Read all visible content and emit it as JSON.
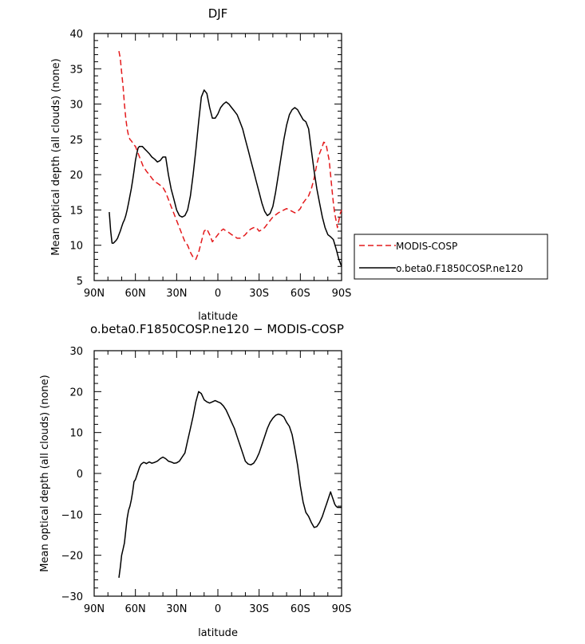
{
  "chart_data": [
    {
      "type": "line",
      "title": "DJF",
      "xlabel": "latitude",
      "ylabel": "Mean optical depth (all clouds) (none)",
      "xlim": [
        90,
        -90
      ],
      "ylim": [
        5,
        40
      ],
      "xticks": [
        90,
        60,
        30,
        0,
        -30,
        -60,
        -90
      ],
      "xtick_labels": [
        "90N",
        "60N",
        "30N",
        "0",
        "30S",
        "60S",
        "90S"
      ],
      "yticks": [
        5,
        10,
        15,
        20,
        25,
        30,
        35,
        40
      ],
      "ytick_labels": [
        "5",
        "10",
        "15",
        "20",
        "25",
        "30",
        "35",
        "40"
      ],
      "grid": false,
      "legend_position": "right",
      "series": [
        {
          "name": "MODIS-COSP",
          "color": "#e41a1c",
          "style": "dashed",
          "x": [
            72,
            71,
            70,
            69,
            68,
            67,
            66,
            65,
            64,
            63,
            62,
            61,
            60,
            59,
            58,
            57,
            56,
            55,
            54,
            53,
            52,
            50,
            48,
            46,
            44,
            42,
            40,
            38,
            36,
            34,
            32,
            30,
            28,
            26,
            24,
            22,
            20,
            18,
            16,
            14,
            12,
            10,
            8,
            6,
            4,
            2,
            0,
            -2,
            -4,
            -6,
            -8,
            -10,
            -12,
            -14,
            -16,
            -18,
            -20,
            -22,
            -24,
            -26,
            -28,
            -30,
            -32,
            -34,
            -36,
            -38,
            -40,
            -42,
            -44,
            -46,
            -48,
            -50,
            -52,
            -54,
            -56,
            -58,
            -60,
            -62,
            -64,
            -66,
            -68,
            -70,
            -72,
            -74,
            -76,
            -77,
            -78,
            -79,
            -80,
            -81,
            -82,
            -83,
            -84,
            -85,
            -86,
            -87,
            -88,
            -89,
            -90
          ],
          "y": [
            37.5,
            36.5,
            34.5,
            32.5,
            30.0,
            28.0,
            26.5,
            25.5,
            25.0,
            24.8,
            24.5,
            24.2,
            24.0,
            23.5,
            23.0,
            22.5,
            22.0,
            21.5,
            21.0,
            20.8,
            20.5,
            20.0,
            19.5,
            19.0,
            18.8,
            18.5,
            18.2,
            17.5,
            16.5,
            15.5,
            14.5,
            13.5,
            12.5,
            11.5,
            10.5,
            10.0,
            9.0,
            8.3,
            8.0,
            9.0,
            10.5,
            12.0,
            12.3,
            11.5,
            10.5,
            11.0,
            11.5,
            12.0,
            12.3,
            12.0,
            11.8,
            11.5,
            11.3,
            11.0,
            11.0,
            11.2,
            11.5,
            12.0,
            12.3,
            12.5,
            12.5,
            12.0,
            12.2,
            12.5,
            13.0,
            13.5,
            14.0,
            14.3,
            14.6,
            14.8,
            15.0,
            15.2,
            15.0,
            14.8,
            14.6,
            14.8,
            15.2,
            16.0,
            16.5,
            17.0,
            18.0,
            19.5,
            21.5,
            23.0,
            24.0,
            24.6,
            24.5,
            24.0,
            23.0,
            22.0,
            20.0,
            18.0,
            16.0,
            14.5,
            13.5,
            12.5,
            13.5,
            14.5,
            15.0
          ]
        },
        {
          "name": "o.beta0.F1850COSP.ne120",
          "color": "#000000",
          "style": "solid",
          "x": [
            79,
            78,
            77,
            76,
            75,
            74,
            73,
            72,
            71,
            70,
            69,
            68,
            67,
            66,
            65,
            64,
            63,
            62,
            61,
            60,
            59,
            58,
            57,
            56,
            55,
            54,
            53,
            52,
            50,
            48,
            46,
            44,
            42,
            40,
            38,
            36,
            34,
            32,
            30,
            28,
            26,
            24,
            22,
            20,
            18,
            16,
            14,
            12,
            10,
            8,
            6,
            4,
            2,
            0,
            -2,
            -4,
            -6,
            -8,
            -10,
            -12,
            -14,
            -16,
            -18,
            -20,
            -22,
            -24,
            -26,
            -28,
            -30,
            -32,
            -34,
            -36,
            -38,
            -40,
            -42,
            -44,
            -46,
            -48,
            -50,
            -52,
            -54,
            -56,
            -58,
            -60,
            -62,
            -64,
            -66,
            -68,
            -70,
            -72,
            -74,
            -76,
            -78,
            -80,
            -82,
            -84,
            -86,
            -88,
            -90
          ],
          "y": [
            14.7,
            12.0,
            10.3,
            10.3,
            10.5,
            10.7,
            11.0,
            11.5,
            12.0,
            12.6,
            13.2,
            13.6,
            14.2,
            15.0,
            16.0,
            17.0,
            18.0,
            19.2,
            20.5,
            22.0,
            23.0,
            23.8,
            24.0,
            24.0,
            24.0,
            23.8,
            23.6,
            23.4,
            23.0,
            22.5,
            22.2,
            21.8,
            22.0,
            22.5,
            22.5,
            20.0,
            18.0,
            16.5,
            15.0,
            14.2,
            14.0,
            14.2,
            15.0,
            17.0,
            20.0,
            23.5,
            27.5,
            31.0,
            32.0,
            31.5,
            29.5,
            28.0,
            28.0,
            28.6,
            29.5,
            30.0,
            30.3,
            30.0,
            29.5,
            29.0,
            28.5,
            27.5,
            26.5,
            25.0,
            23.5,
            22.0,
            20.5,
            19.0,
            17.5,
            16.0,
            14.8,
            14.2,
            14.5,
            15.5,
            17.5,
            20.0,
            22.5,
            25.0,
            27.0,
            28.5,
            29.2,
            29.5,
            29.2,
            28.5,
            27.8,
            27.5,
            26.5,
            23.5,
            20.5,
            18.0,
            16.0,
            14.0,
            12.5,
            11.5,
            11.2,
            10.8,
            9.5,
            8.0,
            7.0
          ]
        }
      ]
    },
    {
      "type": "line",
      "title": "o.beta0.F1850COSP.ne120 − MODIS-COSP",
      "xlabel": "latitude",
      "ylabel": "Mean optical depth (all clouds) (none)",
      "xlim": [
        90,
        -90
      ],
      "ylim": [
        -30,
        30
      ],
      "xticks": [
        90,
        60,
        30,
        0,
        -30,
        -60,
        -90
      ],
      "xtick_labels": [
        "90N",
        "60N",
        "30N",
        "0",
        "30S",
        "60S",
        "90S"
      ],
      "yticks": [
        -30,
        -20,
        -10,
        0,
        10,
        20,
        30
      ],
      "ytick_labels": [
        "−30",
        "−20",
        "−10",
        "0",
        "10",
        "20",
        "30"
      ],
      "grid": false,
      "series": [
        {
          "color": "#000000",
          "style": "solid",
          "x": [
            72,
            71,
            70,
            69,
            68,
            67,
            66,
            65,
            64,
            63,
            62,
            61,
            60,
            59,
            58,
            57,
            56,
            55,
            54,
            53,
            52,
            50,
            48,
            46,
            44,
            42,
            40,
            38,
            36,
            34,
            32,
            30,
            28,
            26,
            24,
            22,
            20,
            18,
            16,
            14,
            12,
            10,
            8,
            6,
            4,
            2,
            0,
            -2,
            -4,
            -6,
            -8,
            -10,
            -12,
            -14,
            -16,
            -18,
            -20,
            -22,
            -24,
            -26,
            -28,
            -30,
            -32,
            -34,
            -36,
            -38,
            -40,
            -42,
            -44,
            -46,
            -48,
            -50,
            -52,
            -54,
            -56,
            -58,
            -60,
            -62,
            -64,
            -66,
            -68,
            -70,
            -72,
            -74,
            -76,
            -77,
            -78,
            -79,
            -80,
            -81,
            -82,
            -83,
            -84,
            -85,
            -86,
            -87,
            -88,
            -89,
            -90
          ],
          "y": [
            -25.5,
            -23.0,
            -20.0,
            -18.5,
            -17.0,
            -14.0,
            -11.0,
            -9.0,
            -8.0,
            -6.5,
            -4.5,
            -2.0,
            -1.5,
            -0.5,
            0.5,
            1.5,
            2.2,
            2.5,
            2.7,
            2.6,
            2.4,
            2.8,
            2.5,
            2.7,
            3.0,
            3.6,
            4.0,
            3.6,
            3.0,
            2.8,
            2.5,
            2.6,
            3.0,
            4.0,
            5.0,
            8.0,
            11.0,
            14.0,
            17.5,
            20.0,
            19.5,
            18.0,
            17.5,
            17.2,
            17.5,
            17.8,
            17.5,
            17.2,
            16.5,
            15.5,
            14.0,
            12.5,
            11.0,
            9.0,
            7.0,
            5.0,
            3.0,
            2.3,
            2.1,
            2.5,
            3.5,
            5.0,
            7.0,
            9.0,
            11.0,
            12.5,
            13.5,
            14.2,
            14.5,
            14.3,
            13.8,
            12.5,
            11.5,
            9.5,
            6.0,
            2.0,
            -3.0,
            -7.0,
            -9.5,
            -10.5,
            -12.0,
            -13.2,
            -13.0,
            -12.0,
            -10.5,
            -9.5,
            -8.5,
            -7.5,
            -6.5,
            -5.5,
            -4.5,
            -5.5,
            -6.5,
            -7.5,
            -8.0,
            -8.3,
            -8.3,
            -8.3,
            -8.3
          ]
        }
      ]
    }
  ]
}
